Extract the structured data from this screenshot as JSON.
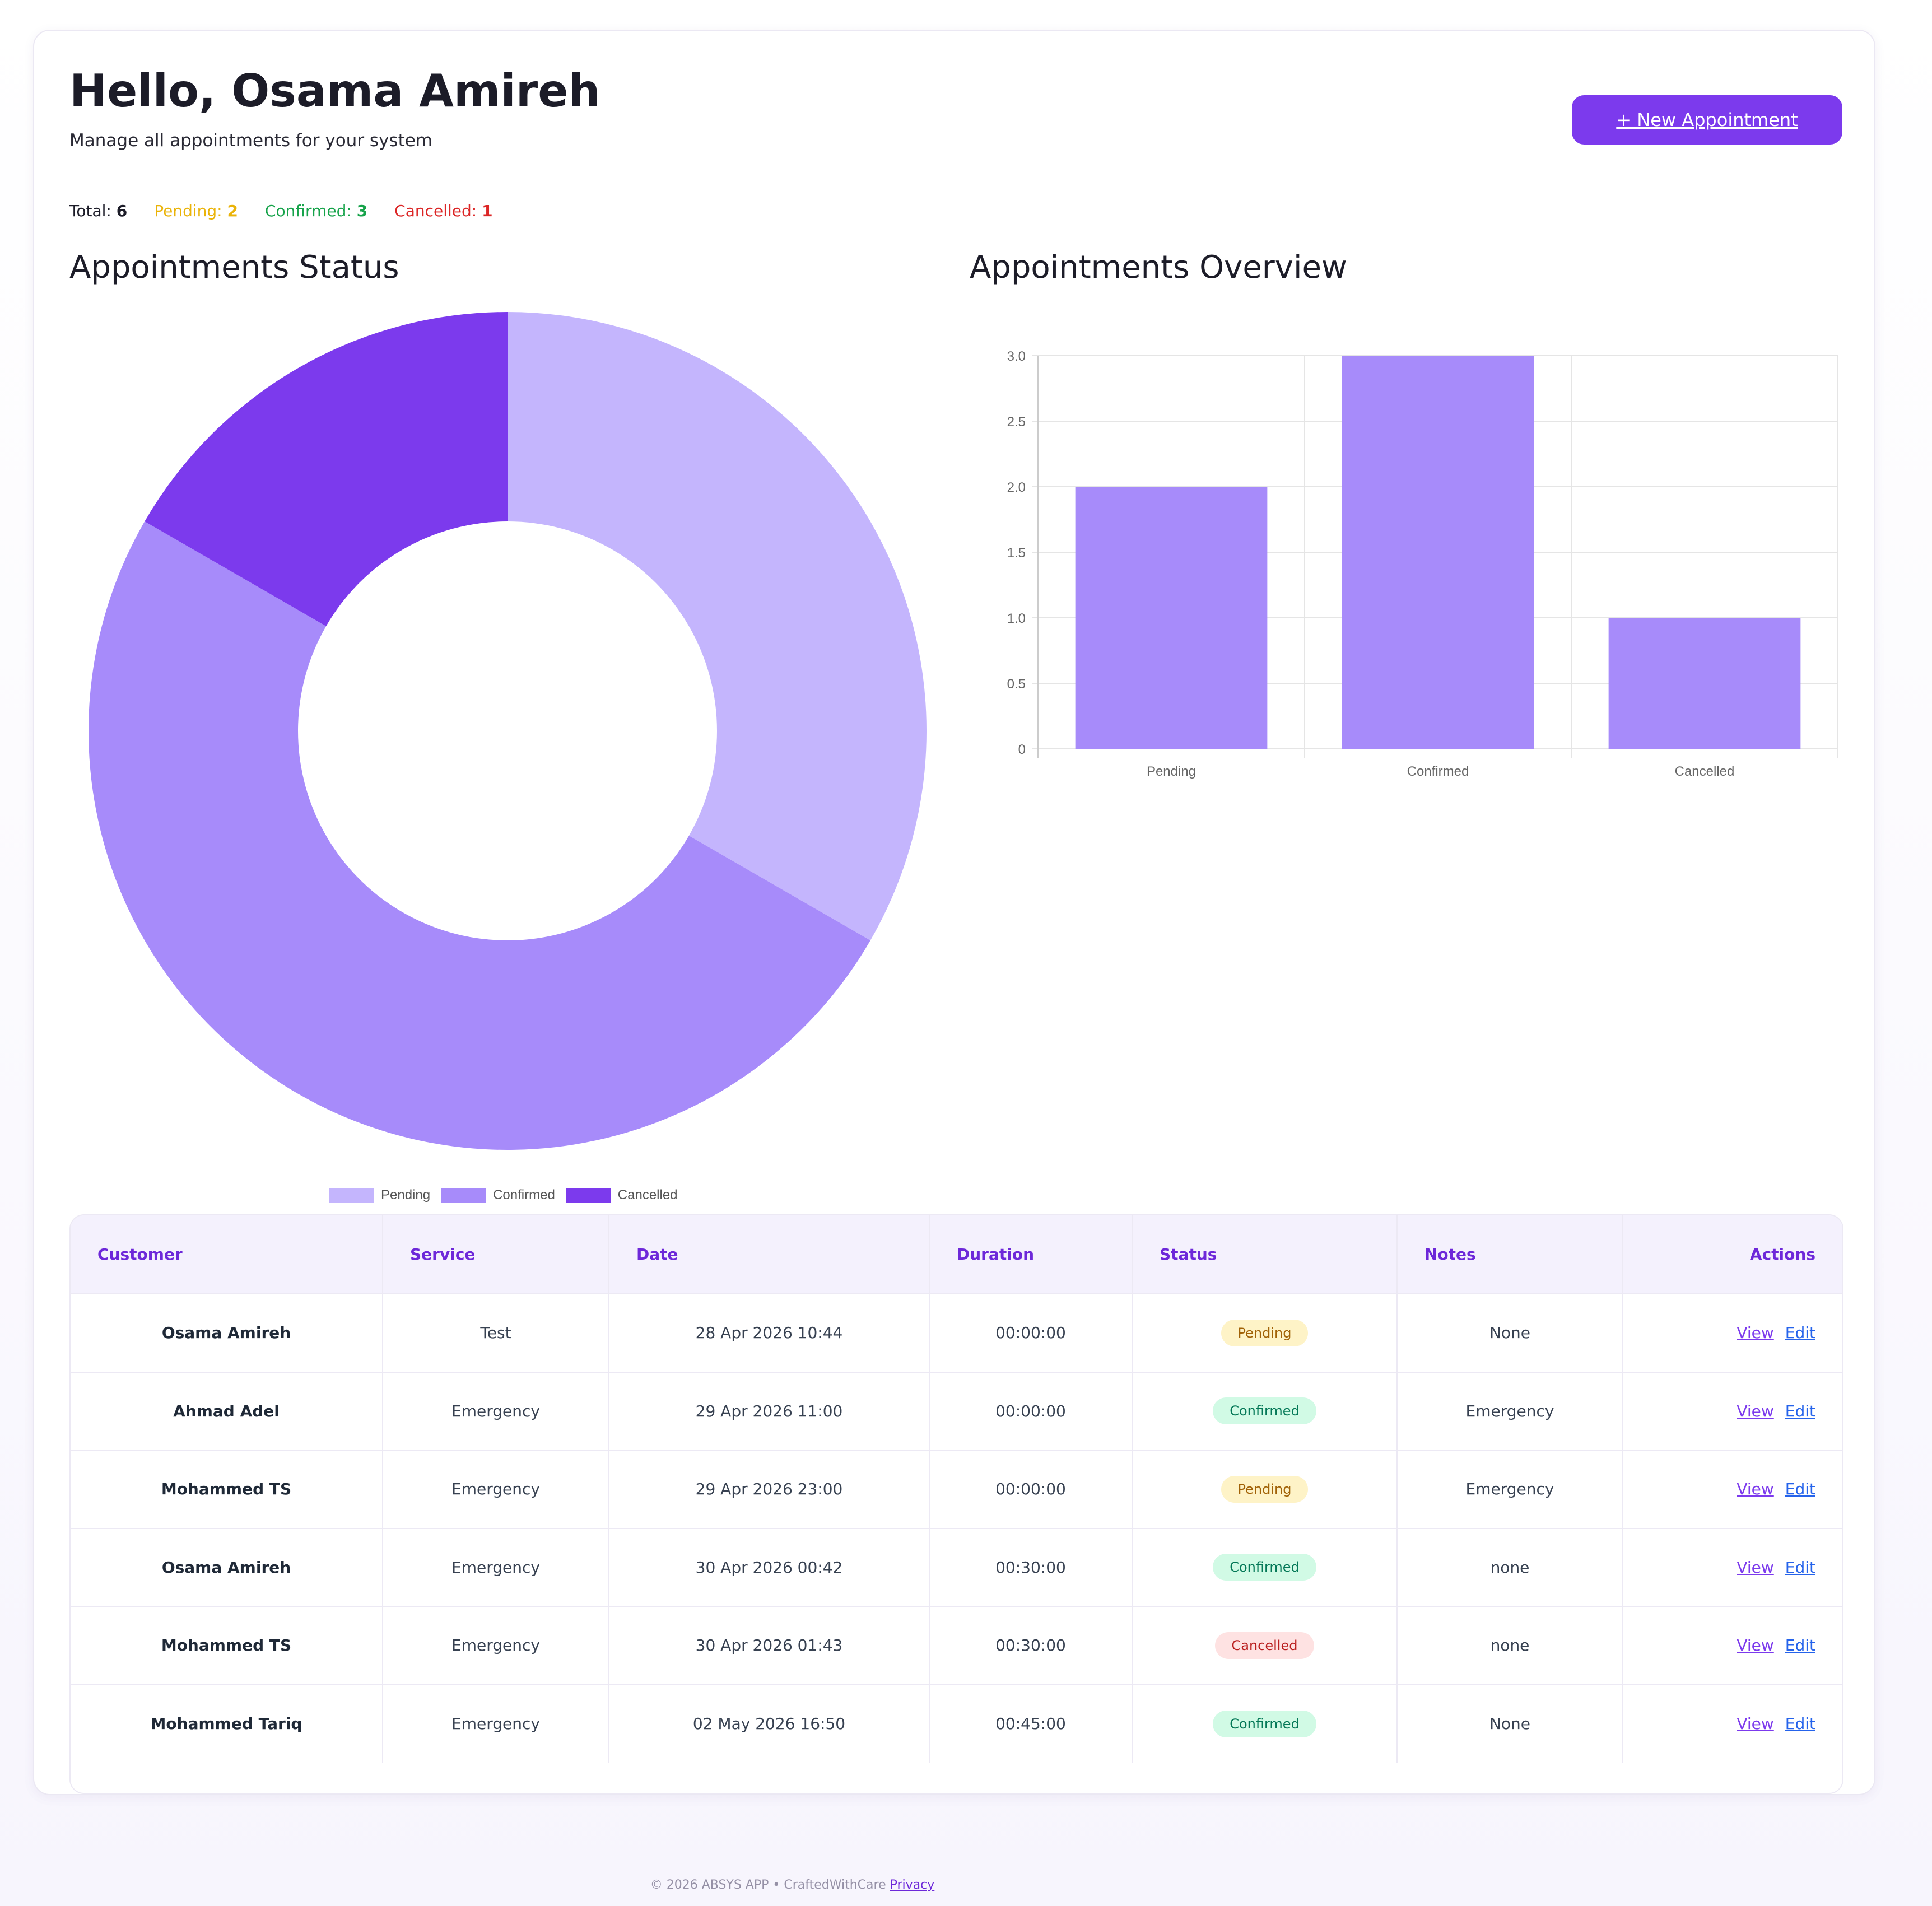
{
  "header": {
    "greeting": "Hello, Osama Amireh",
    "subtitle": "Manage all appointments for your system",
    "new_button_label": "+ New Appointment"
  },
  "stats": {
    "total_label": "Total:",
    "total_value": "6",
    "pending_label": "Pending:",
    "pending_value": "2",
    "confirmed_label": "Confirmed:",
    "confirmed_value": "3",
    "cancelled_label": "Cancelled:",
    "cancelled_value": "1"
  },
  "charts": {
    "status_title": "Appointments Status",
    "overview_title": "Appointments Overview"
  },
  "chart_data": [
    {
      "type": "pie",
      "title": "Appointments Status",
      "categories": [
        "Pending",
        "Confirmed",
        "Cancelled"
      ],
      "values": [
        2,
        3,
        1
      ],
      "colors": [
        "#c4b5fd",
        "#a78bfa",
        "#7c3aed"
      ],
      "donut": true,
      "legend": "bottom"
    },
    {
      "type": "bar",
      "title": "Appointments Overview",
      "categories": [
        "Pending",
        "Confirmed",
        "Cancelled"
      ],
      "values": [
        2,
        3,
        1
      ],
      "ylim": [
        0,
        3
      ],
      "yticks": [
        "0",
        "0.5",
        "1.0",
        "1.5",
        "2.0",
        "2.5",
        "3.0"
      ],
      "bar_color": "#a78bfa",
      "grid": true
    }
  ],
  "table": {
    "headers": [
      "Customer",
      "Service",
      "Date",
      "Duration",
      "Status",
      "Notes",
      "Actions"
    ],
    "view_label": "View",
    "edit_label": "Edit",
    "rows": [
      {
        "customer": "Osama Amireh",
        "service": "Test",
        "date": "28 Apr 2026 10:44",
        "duration": "00:00:00",
        "status": "Pending",
        "notes": "None"
      },
      {
        "customer": "Ahmad Adel",
        "service": "Emergency",
        "date": "29 Apr 2026 11:00",
        "duration": "00:00:00",
        "status": "Confirmed",
        "notes": "Emergency"
      },
      {
        "customer": "Mohammed TS",
        "service": "Emergency",
        "date": "29 Apr 2026 23:00",
        "duration": "00:00:00",
        "status": "Pending",
        "notes": "Emergency"
      },
      {
        "customer": "Osama Amireh",
        "service": "Emergency",
        "date": "30 Apr 2026 00:42",
        "duration": "00:30:00",
        "status": "Confirmed",
        "notes": "none"
      },
      {
        "customer": "Mohammed TS",
        "service": "Emergency",
        "date": "30 Apr 2026 01:43",
        "duration": "00:30:00",
        "status": "Cancelled",
        "notes": "none"
      },
      {
        "customer": "Mohammed Tariq",
        "service": "Emergency",
        "date": "02 May 2026 16:50",
        "duration": "00:45:00",
        "status": "Confirmed",
        "notes": "None"
      }
    ]
  },
  "footer": {
    "text": "© 2026 ABSYS APP • CraftedWithCare",
    "privacy_label": "Privacy"
  }
}
